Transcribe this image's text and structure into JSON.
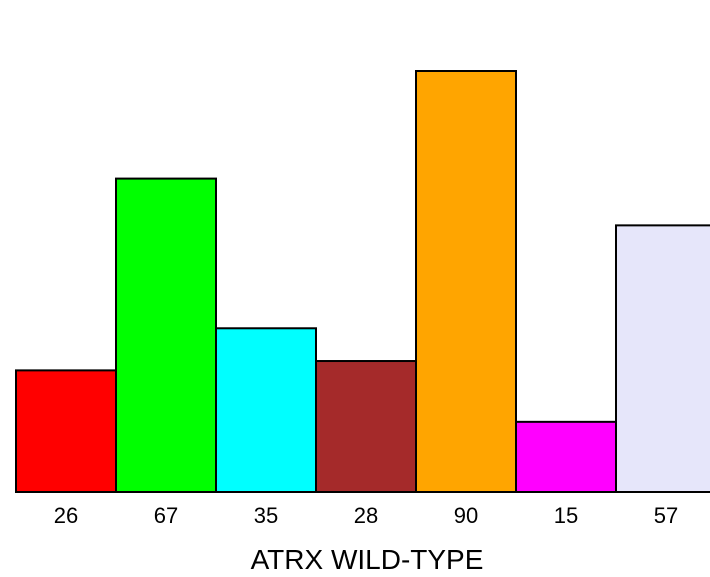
{
  "chart_data": {
    "type": "bar",
    "categories": [
      "26",
      "67",
      "35",
      "28",
      "90",
      "15",
      "57"
    ],
    "values": [
      26,
      67,
      35,
      28,
      90,
      15,
      57
    ],
    "colors": [
      "#ff0000",
      "#00ff00",
      "#00ffff",
      "#a52a2a",
      "#ffa500",
      "#ff00ff",
      "#e6e6fa"
    ],
    "title": "",
    "xlabel": "ATRX WILD-TYPE",
    "ylabel": "",
    "ylim": [
      0,
      90
    ],
    "grid": false,
    "legend": "none"
  }
}
